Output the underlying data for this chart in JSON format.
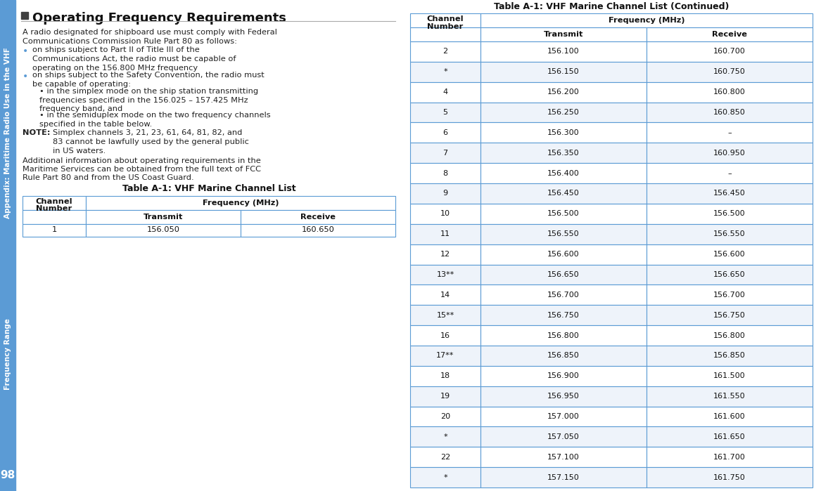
{
  "bg_color": "#ffffff",
  "sidebar_color": "#5b9bd5",
  "sidebar_line1": "Appendix: Maritime Radio Use in the VHF",
  "sidebar_line2": "Frequency Range",
  "page_number": "98",
  "title": "Operating Frequency Requirements",
  "title_square_color": "#404040",
  "body_text_color": "#222222",
  "table_border_color": "#5b9bd5",
  "paragraph1": "A radio designated for shipboard use must comply with Federal Communications Commission Rule Part 80 as follows:",
  "bullet1": "on ships subject to Part II of Title III of the Communications Act, the radio must be capable of operating on the 156.800 MHz frequency",
  "bullet2": "on ships subject to the Safety Convention, the radio must be capable of operating:",
  "sub_bullet1": "• in the simplex mode on the ship station transmitting frequencies specified in the 156.025 – 157.425 MHz frequency band, and",
  "sub_bullet2": "• in the semiduplex mode on the two frequency channels specified in the table below.",
  "note_label": "NOTE:",
  "note_text": "Simplex channels 3, 21, 23, 61, 64, 81, 82, and 83 cannot be lawfully used by the general public in US waters.",
  "paragraph2": "Additional information about operating requirements in the Maritime Services can be obtained from the full text of FCC Rule Part 80 and from the US Coast Guard.",
  "table1_title": "Table A-1: VHF Marine Channel List",
  "table2_title": "Table A-1: VHF Marine Channel List (Continued)",
  "table1_rows": [
    [
      "1",
      "156.050",
      "160.650"
    ]
  ],
  "table2_rows": [
    [
      "2",
      "156.100",
      "160.700"
    ],
    [
      "*",
      "156.150",
      "160.750"
    ],
    [
      "4",
      "156.200",
      "160.800"
    ],
    [
      "5",
      "156.250",
      "160.850"
    ],
    [
      "6",
      "156.300",
      "–"
    ],
    [
      "7",
      "156.350",
      "160.950"
    ],
    [
      "8",
      "156.400",
      "–"
    ],
    [
      "9",
      "156.450",
      "156.450"
    ],
    [
      "10",
      "156.500",
      "156.500"
    ],
    [
      "11",
      "156.550",
      "156.550"
    ],
    [
      "12",
      "156.600",
      "156.600"
    ],
    [
      "13**",
      "156.650",
      "156.650"
    ],
    [
      "14",
      "156.700",
      "156.700"
    ],
    [
      "15**",
      "156.750",
      "156.750"
    ],
    [
      "16",
      "156.800",
      "156.800"
    ],
    [
      "17**",
      "156.850",
      "156.850"
    ],
    [
      "18",
      "156.900",
      "161.500"
    ],
    [
      "19",
      "156.950",
      "161.550"
    ],
    [
      "20",
      "157.000",
      "161.600"
    ],
    [
      "*",
      "157.050",
      "161.650"
    ],
    [
      "22",
      "157.100",
      "161.700"
    ],
    [
      "*",
      "157.150",
      "161.750"
    ]
  ]
}
